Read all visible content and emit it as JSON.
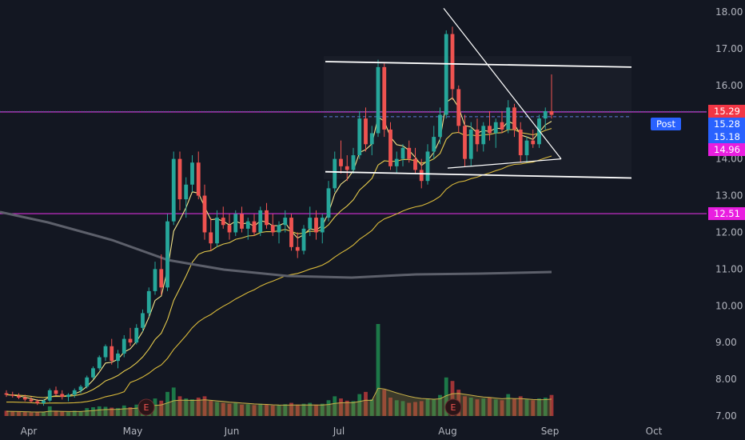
{
  "chart_data": {
    "type": "candlestick",
    "y_range": [
      7.0,
      18.3
    ],
    "y_ticks": [
      "7.00",
      "8.00",
      "9.00",
      "10.00",
      "11.00",
      "12.00",
      "13.00",
      "14.00",
      "15.00",
      "16.00",
      "17.00",
      "18.00"
    ],
    "x_ticks": [
      "Apr",
      "May",
      "Jun",
      "Jul",
      "Aug",
      "Sep",
      "Oct"
    ],
    "price_tags": [
      {
        "value": 15.29,
        "label": "15.29",
        "bg": "#f23645"
      },
      {
        "value": 15.28,
        "label": "15.28",
        "prefix": "Post",
        "bg": "#2962ff"
      },
      {
        "value": 15.18,
        "label": "15.18",
        "bg": "#2962ff"
      },
      {
        "value": 14.96,
        "label": "14.96",
        "bg": "#e91ee0"
      },
      {
        "value": 12.51,
        "label": "12.51",
        "bg": "#e91ee0"
      }
    ],
    "horizontal_lines": [
      {
        "value": 15.28,
        "color": "#d32fd6"
      },
      {
        "value": 12.51,
        "color": "#d32fd6"
      }
    ],
    "earnings_markers": [
      {
        "date": "May 13",
        "label": "E"
      },
      {
        "date": "Aug 7",
        "label": "E"
      }
    ],
    "candles_ohlc": [
      [
        7.62,
        7.7,
        7.52,
        7.58
      ],
      [
        7.58,
        7.66,
        7.5,
        7.55
      ],
      [
        7.55,
        7.62,
        7.46,
        7.5
      ],
      [
        7.5,
        7.58,
        7.4,
        7.45
      ],
      [
        7.45,
        7.52,
        7.36,
        7.4
      ],
      [
        7.4,
        7.46,
        7.3,
        7.35
      ],
      [
        7.35,
        7.45,
        7.28,
        7.42
      ],
      [
        7.42,
        7.75,
        7.38,
        7.7
      ],
      [
        7.7,
        7.8,
        7.55,
        7.6
      ],
      [
        7.6,
        7.7,
        7.45,
        7.52
      ],
      [
        7.52,
        7.62,
        7.4,
        7.58
      ],
      [
        7.58,
        7.75,
        7.5,
        7.7
      ],
      [
        7.7,
        7.85,
        7.62,
        7.8
      ],
      [
        7.8,
        8.1,
        7.75,
        8.05
      ],
      [
        8.05,
        8.35,
        8.0,
        8.3
      ],
      [
        8.3,
        8.65,
        8.25,
        8.6
      ],
      [
        8.6,
        8.95,
        8.5,
        8.9
      ],
      [
        8.9,
        9.1,
        8.4,
        8.5
      ],
      [
        8.5,
        8.8,
        8.3,
        8.7
      ],
      [
        8.7,
        9.2,
        8.6,
        9.1
      ],
      [
        9.1,
        9.4,
        8.9,
        9.0
      ],
      [
        9.0,
        9.5,
        8.95,
        9.4
      ],
      [
        9.4,
        9.9,
        9.3,
        9.8
      ],
      [
        9.8,
        10.5,
        9.7,
        10.4
      ],
      [
        10.4,
        11.2,
        10.3,
        11.0
      ],
      [
        11.0,
        11.4,
        10.3,
        10.5
      ],
      [
        10.5,
        12.5,
        10.4,
        12.3
      ],
      [
        12.3,
        14.2,
        12.2,
        14.0
      ],
      [
        14.0,
        14.2,
        12.6,
        12.9
      ],
      [
        12.9,
        13.5,
        12.4,
        13.3
      ],
      [
        13.3,
        14.1,
        13.1,
        13.9
      ],
      [
        13.9,
        14.2,
        12.9,
        13.0
      ],
      [
        13.0,
        13.3,
        11.8,
        12.0
      ],
      [
        12.0,
        12.4,
        11.5,
        11.7
      ],
      [
        11.7,
        12.6,
        11.6,
        12.4
      ],
      [
        12.4,
        12.7,
        12.1,
        12.2
      ],
      [
        12.2,
        12.5,
        11.8,
        12.0
      ],
      [
        12.0,
        12.6,
        11.9,
        12.5
      ],
      [
        12.5,
        12.7,
        12.0,
        12.1
      ],
      [
        12.1,
        12.4,
        11.8,
        12.3
      ],
      [
        12.3,
        12.5,
        11.9,
        12.0
      ],
      [
        12.0,
        12.7,
        11.9,
        12.6
      ],
      [
        12.6,
        12.8,
        12.1,
        12.2
      ],
      [
        12.2,
        12.5,
        11.9,
        12.0
      ],
      [
        12.0,
        12.3,
        11.7,
        12.2
      ],
      [
        12.2,
        12.6,
        12.0,
        12.4
      ],
      [
        12.4,
        12.5,
        11.5,
        11.6
      ],
      [
        11.6,
        12.0,
        11.3,
        11.5
      ],
      [
        11.5,
        12.2,
        11.4,
        12.1
      ],
      [
        12.1,
        12.7,
        11.9,
        12.4
      ],
      [
        12.4,
        12.6,
        11.8,
        12.0
      ],
      [
        12.0,
        12.5,
        11.7,
        12.4
      ],
      [
        12.4,
        13.4,
        12.3,
        13.2
      ],
      [
        13.2,
        14.2,
        13.1,
        14.0
      ],
      [
        14.0,
        14.5,
        13.6,
        13.8
      ],
      [
        13.8,
        14.1,
        13.4,
        13.7
      ],
      [
        13.7,
        14.3,
        13.6,
        14.1
      ],
      [
        14.1,
        15.3,
        14.0,
        15.1
      ],
      [
        15.1,
        15.4,
        14.2,
        14.4
      ],
      [
        14.4,
        14.9,
        14.1,
        14.7
      ],
      [
        14.7,
        16.7,
        14.6,
        16.5
      ],
      [
        16.5,
        16.6,
        14.6,
        14.8
      ],
      [
        14.8,
        15.0,
        13.7,
        13.8
      ],
      [
        13.8,
        14.2,
        13.6,
        14.0
      ],
      [
        14.0,
        14.4,
        13.8,
        14.3
      ],
      [
        14.3,
        14.5,
        13.9,
        14.0
      ],
      [
        14.0,
        14.3,
        13.6,
        13.7
      ],
      [
        13.7,
        14.0,
        13.2,
        13.4
      ],
      [
        13.4,
        14.4,
        13.3,
        14.2
      ],
      [
        14.2,
        14.9,
        14.0,
        14.6
      ],
      [
        14.6,
        15.4,
        14.4,
        15.2
      ],
      [
        15.2,
        17.5,
        15.1,
        17.4
      ],
      [
        17.4,
        17.6,
        15.6,
        15.9
      ],
      [
        15.9,
        16.0,
        14.7,
        14.9
      ],
      [
        14.9,
        15.2,
        13.8,
        14.0
      ],
      [
        14.0,
        15.0,
        13.8,
        14.8
      ],
      [
        14.8,
        15.1,
        14.2,
        14.4
      ],
      [
        14.4,
        15.0,
        14.2,
        14.9
      ],
      [
        14.9,
        15.3,
        14.5,
        14.7
      ],
      [
        14.7,
        15.1,
        14.3,
        15.0
      ],
      [
        15.0,
        15.3,
        14.7,
        14.8
      ],
      [
        14.8,
        15.6,
        14.7,
        15.4
      ],
      [
        15.4,
        15.5,
        14.6,
        14.8
      ],
      [
        14.8,
        15.0,
        13.9,
        14.1
      ],
      [
        14.1,
        14.6,
        13.9,
        14.5
      ],
      [
        14.5,
        14.8,
        14.3,
        14.4
      ],
      [
        14.4,
        15.2,
        14.3,
        15.1
      ],
      [
        15.1,
        15.4,
        14.8,
        15.3
      ],
      [
        15.3,
        16.3,
        15.1,
        15.2
      ]
    ],
    "volumes": [
      0.12,
      0.1,
      0.1,
      0.09,
      0.08,
      0.09,
      0.1,
      0.22,
      0.12,
      0.1,
      0.09,
      0.12,
      0.11,
      0.18,
      0.2,
      0.22,
      0.21,
      0.19,
      0.18,
      0.24,
      0.2,
      0.26,
      0.28,
      0.35,
      0.4,
      0.35,
      0.55,
      0.65,
      0.45,
      0.4,
      0.38,
      0.42,
      0.45,
      0.35,
      0.32,
      0.3,
      0.28,
      0.3,
      0.26,
      0.27,
      0.25,
      0.28,
      0.26,
      0.24,
      0.25,
      0.27,
      0.3,
      0.26,
      0.28,
      0.3,
      0.26,
      0.28,
      0.36,
      0.45,
      0.4,
      0.35,
      0.34,
      0.5,
      0.55,
      0.38,
      2.1,
      0.6,
      0.42,
      0.36,
      0.34,
      0.3,
      0.32,
      0.34,
      0.4,
      0.38,
      0.48,
      0.88,
      0.8,
      0.6,
      0.45,
      0.42,
      0.38,
      0.4,
      0.42,
      0.38,
      0.36,
      0.5,
      0.4,
      0.45,
      0.38,
      0.36,
      0.4,
      0.42,
      0.48
    ]
  }
}
